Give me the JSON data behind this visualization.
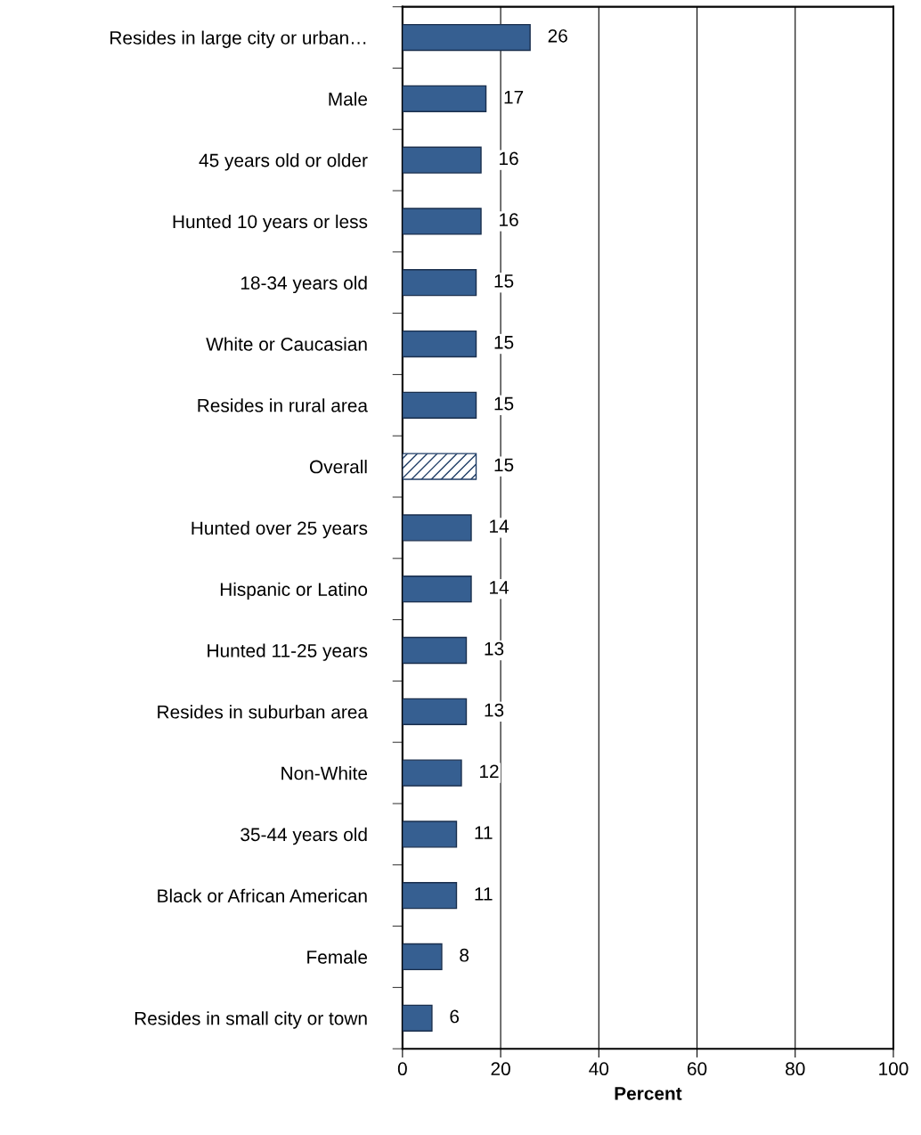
{
  "chart_data": {
    "type": "bar",
    "orientation": "horizontal",
    "xlabel": "Percent",
    "categories": [
      "Resides in large city or urban…",
      "Male",
      "45 years old or older",
      "Hunted 10 years or less",
      "18-34 years old",
      "White or Caucasian",
      "Resides in rural area",
      "Overall",
      "Hunted over 25 years",
      "Hispanic or Latino",
      "Hunted 11-25 years",
      "Resides in suburban area",
      "Non-White",
      "35-44 years old",
      "Black or African American",
      "Female",
      "Resides in small city or town"
    ],
    "values": [
      26,
      17,
      16,
      16,
      15,
      15,
      15,
      15,
      14,
      14,
      13,
      13,
      12,
      11,
      11,
      8,
      6
    ],
    "colors": [
      "#365f91",
      "#365f91",
      "#365f91",
      "#365f91",
      "#365f91",
      "#365f91",
      "#365f91",
      "#ffffff",
      "#365f91",
      "#365f91",
      "#365f91",
      "#365f91",
      "#365f91",
      "#365f91",
      "#365f91",
      "#365f91",
      "#365f91"
    ],
    "data_labels": true,
    "xlim": [
      0,
      100
    ],
    "xticks": [
      0,
      20,
      40,
      60,
      80,
      100
    ],
    "grid": "x"
  }
}
